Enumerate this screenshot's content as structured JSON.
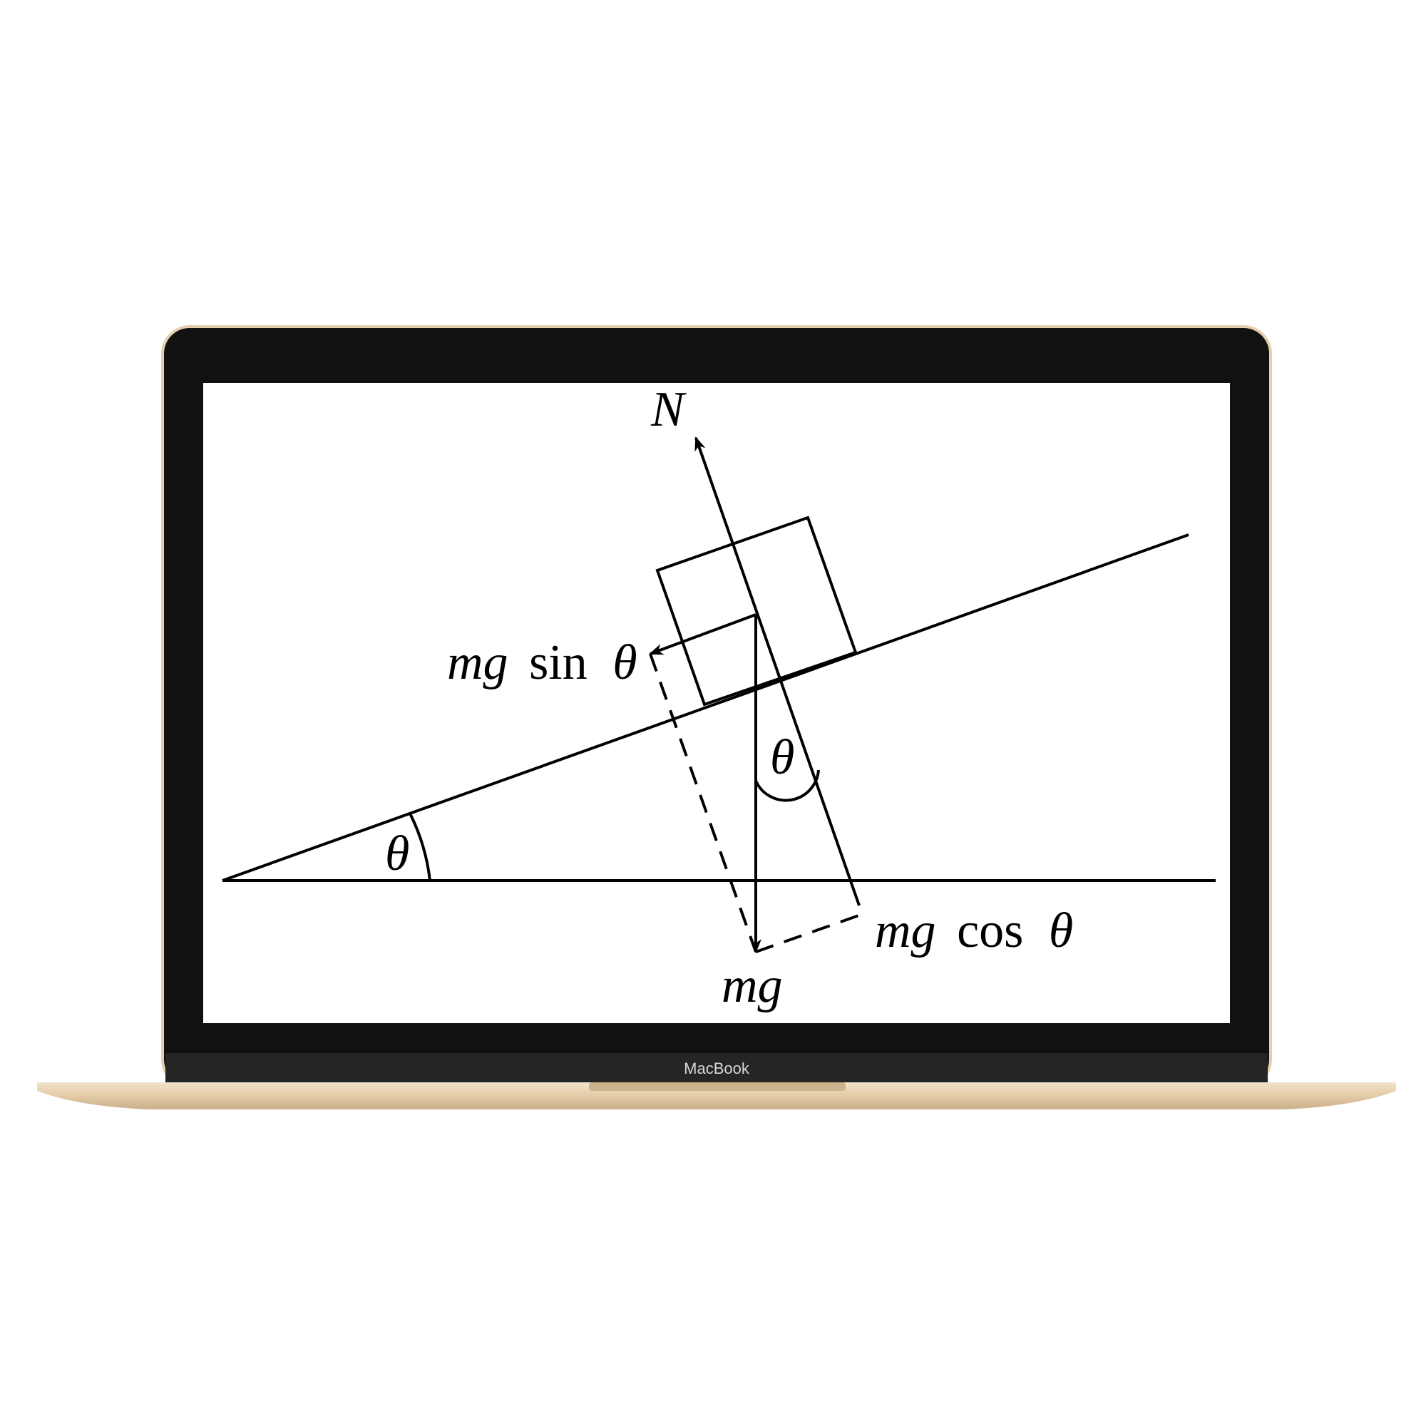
{
  "device": {
    "brand_label": "MacBook",
    "colors": {
      "shell": "#e4cfae",
      "bezel": "#111111",
      "bezel_chin": "#252525",
      "screen": "#ffffff",
      "ink": "#000000"
    }
  },
  "diagram": {
    "labels": {
      "normal_force": "N",
      "parallel_component": {
        "mag": "mg",
        "func": "sin",
        "angle": "θ"
      },
      "perpendicular_component": {
        "mag": "mg",
        "func": "cos",
        "angle": "θ"
      },
      "weight": "mg",
      "incline_angle": "θ",
      "force_angle": "θ"
    }
  }
}
